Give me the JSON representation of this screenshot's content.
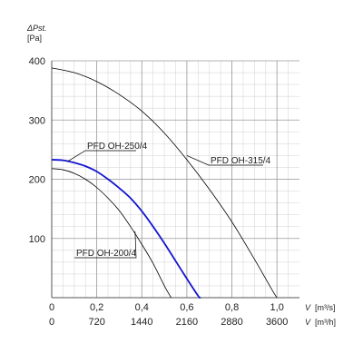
{
  "chart_data": {
    "type": "line",
    "y_axis": {
      "label_symbol": "ΔPst.",
      "label_unit": "[Pa]",
      "ylim": [
        0,
        400
      ],
      "ticks": [
        100,
        200,
        300,
        400
      ],
      "minor_step": 20
    },
    "x_axis": {
      "xlim": [
        0,
        1.1
      ],
      "ticks": [
        0,
        0.2,
        0.4,
        0.6,
        0.8,
        1.0
      ],
      "tick_labels": [
        "0",
        "0,2",
        "0,4",
        "0,6",
        "0,8",
        "1,0"
      ],
      "minor_step": 0.05,
      "label_symbol": "V",
      "label_unit": "[m³/s]"
    },
    "x_axis_secondary": {
      "tick_labels": [
        "0",
        "720",
        "1440",
        "2160",
        "2880",
        "3600"
      ],
      "label_symbol": "V",
      "label_unit": "[m³/h]"
    },
    "grid": true,
    "series": [
      {
        "name": "PFD OH-315/4",
        "color": "#000000",
        "highlight": false,
        "x": [
          0,
          0.1,
          0.2,
          0.3,
          0.4,
          0.5,
          0.6,
          0.7,
          0.8,
          0.9,
          0.98,
          1.0
        ],
        "y": [
          388,
          380,
          365,
          343,
          315,
          278,
          233,
          183,
          128,
          65,
          12,
          0
        ]
      },
      {
        "name": "PFD OH-250/4",
        "color": "#1515d0",
        "highlight": true,
        "x": [
          0,
          0.05,
          0.1,
          0.15,
          0.2,
          0.25,
          0.3,
          0.35,
          0.4,
          0.45,
          0.5,
          0.55,
          0.6,
          0.65,
          0.66
        ],
        "y": [
          233,
          232,
          228,
          222,
          213,
          200,
          185,
          168,
          146,
          120,
          92,
          62,
          32,
          3,
          0
        ]
      },
      {
        "name": "PFD OH-200/4",
        "color": "#000000",
        "highlight": false,
        "x": [
          0,
          0.05,
          0.1,
          0.15,
          0.2,
          0.25,
          0.3,
          0.35,
          0.4,
          0.45,
          0.5,
          0.53
        ],
        "y": [
          218,
          216,
          210,
          200,
          186,
          168,
          147,
          120,
          90,
          58,
          20,
          0
        ]
      }
    ],
    "annotations": [
      {
        "text": "PFD OH-250/4",
        "series": "PFD OH-250/4"
      },
      {
        "text": "PFD OH-315/4",
        "series": "PFD OH-315/4"
      },
      {
        "text": "PFD OH-200/4",
        "series": "PFD OH-200/4"
      }
    ]
  }
}
